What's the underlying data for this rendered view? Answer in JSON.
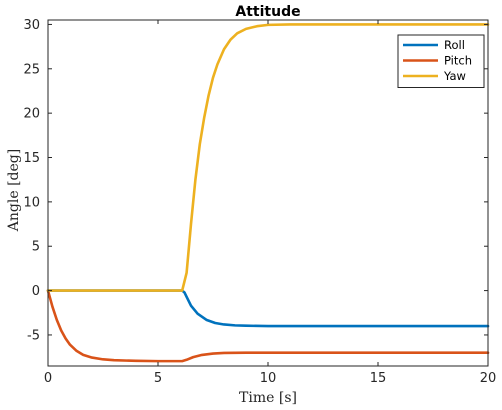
{
  "chart_data": {
    "type": "line",
    "title": "Attitude",
    "xlabel": "Time [s]",
    "ylabel": "Angle [deg]",
    "xlim": [
      0,
      20
    ],
    "ylim": [
      -8.5,
      30.5
    ],
    "xticks": [
      "0",
      "5",
      "10",
      "15",
      "20"
    ],
    "yticks": [
      "-5",
      "0",
      "5",
      "10",
      "15",
      "20",
      "25",
      "30"
    ],
    "grid": false,
    "legend_position": "top-right",
    "series": [
      {
        "name": "Roll",
        "color": "#0072BD",
        "x": [
          0,
          2,
          4,
          6.1,
          6.2,
          6.3,
          6.5,
          6.8,
          7.2,
          7.6,
          8.0,
          8.5,
          9.0,
          10.0,
          12.0,
          15.0,
          20.0
        ],
        "y": [
          0,
          0,
          0,
          0,
          -0.2,
          -0.7,
          -1.7,
          -2.6,
          -3.3,
          -3.65,
          -3.82,
          -3.92,
          -3.96,
          -4.0,
          -4.0,
          -4.0,
          -4.0
        ]
      },
      {
        "name": "Pitch",
        "color": "#D95319",
        "x": [
          0,
          0.2,
          0.4,
          0.6,
          0.8,
          1.0,
          1.3,
          1.6,
          2.0,
          2.5,
          3.0,
          4.0,
          5.0,
          6.0,
          6.1,
          6.3,
          6.6,
          7.0,
          7.5,
          8.0,
          9.0,
          10.0,
          15.0,
          20.0
        ],
        "y": [
          0,
          -1.8,
          -3.3,
          -4.5,
          -5.4,
          -6.1,
          -6.8,
          -7.25,
          -7.55,
          -7.75,
          -7.85,
          -7.92,
          -7.95,
          -7.95,
          -7.95,
          -7.8,
          -7.5,
          -7.25,
          -7.1,
          -7.03,
          -7.0,
          -7.0,
          -7.0,
          -7.0
        ]
      },
      {
        "name": "Yaw",
        "color": "#EDB120",
        "x": [
          0,
          2,
          4,
          6.1,
          6.3,
          6.5,
          6.7,
          6.9,
          7.1,
          7.3,
          7.5,
          7.7,
          8.0,
          8.3,
          8.6,
          9.0,
          9.5,
          10.0,
          11.0,
          12.0,
          15.0,
          20.0
        ],
        "y": [
          0,
          0,
          0,
          0,
          2.0,
          7.5,
          12.5,
          16.5,
          19.5,
          22.0,
          24.0,
          25.5,
          27.2,
          28.3,
          29.0,
          29.5,
          29.8,
          29.95,
          30.0,
          30.0,
          30.0,
          30.0
        ]
      }
    ]
  }
}
